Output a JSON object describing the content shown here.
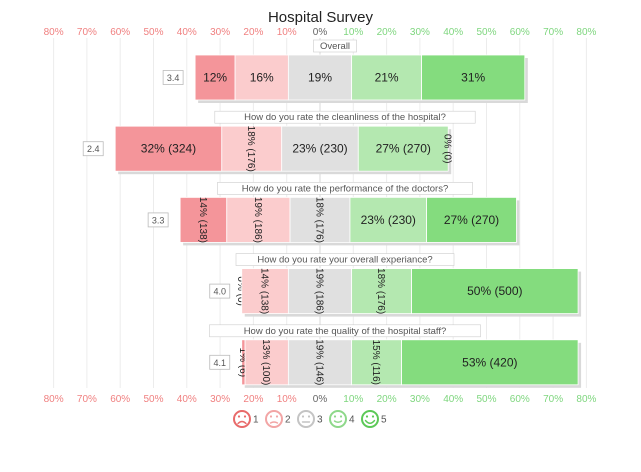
{
  "chart_data": {
    "type": "bar",
    "orientation": "horizontal-diverging",
    "title": "Hospital Survey",
    "x_ticks": [
      "80%",
      "70%",
      "60%",
      "50%",
      "40%",
      "30%",
      "20%",
      "10%",
      "0%",
      "10%",
      "20%",
      "30%",
      "40%",
      "50%",
      "60%",
      "70%",
      "80%"
    ],
    "legend": [
      "1",
      "2",
      "3",
      "4",
      "5"
    ],
    "colors": [
      "#f4959a",
      "#fbcccd",
      "#e0e0e0",
      "#b4e8b0",
      "#84dc7e"
    ],
    "negative_tick_color": "#f08080",
    "positive_tick_color": "#7ed67e",
    "rows": [
      {
        "question": "Overall",
        "mean": "3.4",
        "values": [
          12,
          16,
          19,
          21,
          31
        ],
        "labels": [
          "12%",
          "16%",
          "19%",
          "21%",
          "31%"
        ]
      },
      {
        "question": "How do you rate the cleanliness of the hospital?",
        "mean": "2.4",
        "values": [
          32,
          18,
          23,
          27,
          0
        ],
        "labels": [
          "32% (324)",
          "18% (176)",
          "23% (230)",
          "27% (270)",
          "0% (0)"
        ]
      },
      {
        "question": "How do you rate the performance of the doctors?",
        "mean": "3.3",
        "values": [
          14,
          19,
          18,
          23,
          27
        ],
        "labels": [
          "14% (138)",
          "19% (186)",
          "18% (176)",
          "23% (230)",
          "27% (270)"
        ]
      },
      {
        "question": "How do you rate your overall experiance?",
        "mean": "4.0",
        "values": [
          0,
          14,
          19,
          18,
          50
        ],
        "labels": [
          "0% (0)",
          "14% (138)",
          "19% (186)",
          "18% (176)",
          "50% (500)"
        ]
      },
      {
        "question": "How do you rate the quality of the hospital staff?",
        "mean": "4.1",
        "values": [
          1,
          13,
          19,
          15,
          53
        ],
        "labels": [
          "1% (6)",
          "13% (100)",
          "19% (146)",
          "15% (116)",
          "53% (420)"
        ]
      }
    ]
  }
}
